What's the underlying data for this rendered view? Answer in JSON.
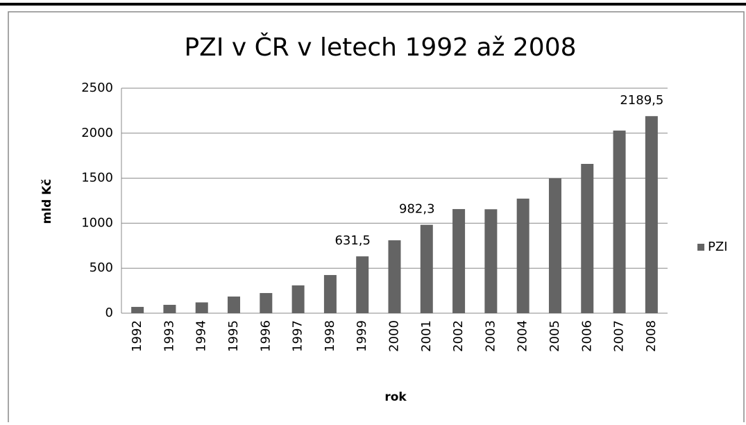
{
  "chart_data": {
    "type": "bar",
    "title": "PZI v ČR v letech 1992 až 2008",
    "x_label": "rok",
    "y_label": "mld Kč",
    "categories": [
      "1992",
      "1993",
      "1994",
      "1995",
      "1996",
      "1997",
      "1998",
      "1999",
      "2000",
      "2001",
      "2002",
      "2003",
      "2004",
      "2005",
      "2006",
      "2007",
      "2008"
    ],
    "series": [
      {
        "name": "PZI",
        "color": "#646464",
        "values": [
          70,
          93,
          120,
          185,
          224,
          309,
          424,
          631.5,
          810,
          982.3,
          1157,
          1155,
          1273,
          1497,
          1659,
          2029,
          2189.5
        ],
        "value_labels": [
          null,
          null,
          null,
          null,
          null,
          null,
          null,
          "631,5",
          null,
          "982,3",
          null,
          null,
          null,
          null,
          null,
          null,
          "2189,5"
        ]
      }
    ],
    "ylim": [
      0,
      2500
    ],
    "yticks": [
      0,
      500,
      1000,
      1500,
      2000,
      2500
    ],
    "grid": true,
    "legend": "right"
  }
}
